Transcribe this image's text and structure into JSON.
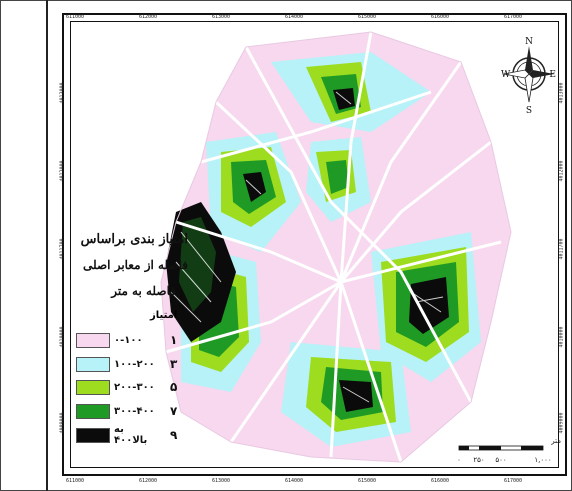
{
  "map": {
    "x_ticks": [
      "611000",
      "612000",
      "613000",
      "614000",
      "615000",
      "616000",
      "617000"
    ],
    "y_ticks": [
      "4013000",
      "4012000",
      "4011700",
      "4010000",
      "4009000"
    ],
    "legend": {
      "title_line1": "امتیاز بندی براساس",
      "title_line2": "فاصله از معابر اصلی",
      "title_line3": "فاصله به متر",
      "score_header": "امتیاز",
      "items": [
        {
          "range": "۰-۱۰۰",
          "score": "۱",
          "color": "#f7d8ee"
        },
        {
          "range": "۱۰۰-۲۰۰",
          "score": "۳",
          "color": "#b6f2f7"
        },
        {
          "range": "۲۰۰-۳۰۰",
          "score": "۵",
          "color": "#9ddc1e"
        },
        {
          "range": "۳۰۰-۴۰۰",
          "score": "۷",
          "color": "#1f9b25"
        },
        {
          "range": "به بالا۴۰۰",
          "score": "۹",
          "color": "#0b0b0b"
        }
      ]
    },
    "north_arrow": {
      "n": "N",
      "s": "S",
      "e": "E",
      "w": "W"
    },
    "scale": {
      "unit": "متر",
      "labels": [
        "۰",
        "۲۵۰",
        "۵۰۰",
        "۱,۰۰۰"
      ]
    }
  }
}
